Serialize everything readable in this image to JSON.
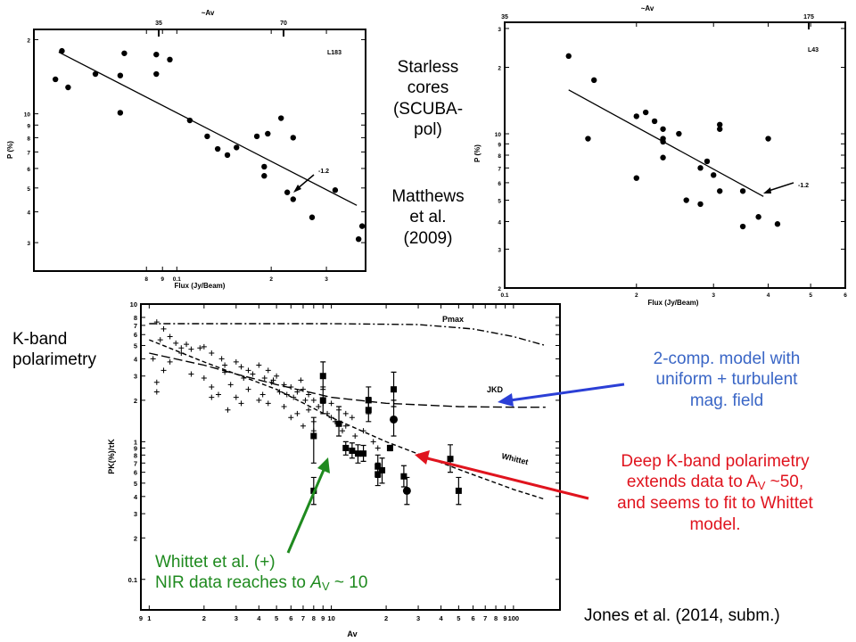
{
  "annotations": {
    "starless_lines": [
      "Starless",
      "cores",
      "(SCUBA-",
      "pol)"
    ],
    "matthews_lines": [
      "Matthews",
      "et al.",
      "(2009)"
    ],
    "kband_lines": [
      "K-band",
      "polarimetry"
    ],
    "model_lines": [
      "2-comp. model with",
      "uniform + turbulent",
      "mag. field"
    ],
    "deep_line1": "Deep K-band polarimetry",
    "deep_line2_a": "extends data to A",
    "deep_line2_sub": "V",
    "deep_line2_b": " ~50,",
    "deep_line3": "and seems to fit to Whittet",
    "deep_line4": "model.",
    "whittet_line1": "Whittet et al. (+)",
    "whittet_line2_a": "NIR data reaches to ",
    "whittet_line2_av": "A",
    "whittet_line2_sub": "V",
    "whittet_line2_b": " ~ 10",
    "jones": "Jones et al. (2014, subm.)"
  },
  "colors": {
    "blue_arrow": "#2b3fd6",
    "red_arrow": "#e0141e",
    "green_arrow": "#1f8a1f"
  },
  "chart_data": [
    {
      "type": "scatter",
      "name": "L183",
      "label": "L183",
      "xlabel": "Flux (Jy/Beam)",
      "ylabel": "P (%)",
      "top_axis_label": "~Av",
      "top_ticks": [
        "35",
        "70"
      ],
      "xscale": "log",
      "yscale": "log",
      "xlim": [
        0.035,
        0.4
      ],
      "ylim": [
        2.3,
        22
      ],
      "x_ticks": [
        {
          "v": 0.08,
          "t": "8"
        },
        {
          "v": 0.09,
          "t": "9"
        },
        {
          "v": 0.1,
          "t": "0.1"
        },
        {
          "v": 0.2,
          "t": "2"
        },
        {
          "v": 0.3,
          "t": "3"
        }
      ],
      "y_ticks": [
        {
          "v": 3,
          "t": "3"
        },
        {
          "v": 4,
          "t": "4"
        },
        {
          "v": 5,
          "t": "5"
        },
        {
          "v": 6,
          "t": "6"
        },
        {
          "v": 7,
          "t": "7"
        },
        {
          "v": 8,
          "t": "8"
        },
        {
          "v": 9,
          "t": "9"
        },
        {
          "v": 10,
          "t": "10"
        },
        {
          "v": 20,
          "t": "2"
        }
      ],
      "points": [
        [
          0.043,
          18
        ],
        [
          0.041,
          13.8
        ],
        [
          0.045,
          12.8
        ],
        [
          0.055,
          14.5
        ],
        [
          0.066,
          14.3
        ],
        [
          0.068,
          17.6
        ],
        [
          0.066,
          10.1
        ],
        [
          0.086,
          17.4
        ],
        [
          0.086,
          14.5
        ],
        [
          0.095,
          16.6
        ],
        [
          0.11,
          9.4
        ],
        [
          0.125,
          8.1
        ],
        [
          0.135,
          7.2
        ],
        [
          0.145,
          6.8
        ],
        [
          0.155,
          7.3
        ],
        [
          0.18,
          8.1
        ],
        [
          0.195,
          8.3
        ],
        [
          0.19,
          6.1
        ],
        [
          0.19,
          5.6
        ],
        [
          0.215,
          9.6
        ],
        [
          0.235,
          8.0
        ],
        [
          0.235,
          4.5
        ],
        [
          0.225,
          4.8
        ],
        [
          0.27,
          3.8
        ],
        [
          0.32,
          4.9
        ],
        [
          0.39,
          3.5
        ],
        [
          0.38,
          3.1
        ]
      ],
      "fit_line": [
        [
          0.042,
          17.8
        ],
        [
          0.375,
          4.25
        ]
      ],
      "fit_label": "-1.2"
    },
    {
      "type": "scatter",
      "name": "L43",
      "label": "L43",
      "xlabel": "Flux (Jy/Beam)",
      "ylabel": "P (%)",
      "top_axis_label": "~Av",
      "top_ticks": [
        "35",
        "175"
      ],
      "xscale": "log",
      "yscale": "log",
      "xlim": [
        1,
        6
      ],
      "ylim": [
        2,
        32
      ],
      "x_ticks": [
        {
          "v": 1,
          "t": "0.1"
        },
        {
          "v": 2,
          "t": "2"
        },
        {
          "v": 3,
          "t": "3"
        },
        {
          "v": 4,
          "t": "4"
        },
        {
          "v": 5,
          "t": "5"
        },
        {
          "v": 6,
          "t": "6"
        }
      ],
      "y_ticks": [
        {
          "v": 2,
          "t": "2"
        },
        {
          "v": 3,
          "t": "3"
        },
        {
          "v": 4,
          "t": "4"
        },
        {
          "v": 5,
          "t": "5"
        },
        {
          "v": 6,
          "t": "6"
        },
        {
          "v": 7,
          "t": "7"
        },
        {
          "v": 8,
          "t": "8"
        },
        {
          "v": 9,
          "t": "9"
        },
        {
          "v": 10,
          "t": "10"
        },
        {
          "v": 20,
          "t": "2"
        },
        {
          "v": 30,
          "t": "3"
        }
      ],
      "points": [
        [
          1.4,
          22.5
        ],
        [
          1.6,
          17.5
        ],
        [
          1.55,
          9.5
        ],
        [
          2.0,
          12.0
        ],
        [
          2.0,
          6.3
        ],
        [
          2.1,
          12.5
        ],
        [
          2.2,
          11.4
        ],
        [
          2.3,
          10.5
        ],
        [
          2.3,
          9.5
        ],
        [
          2.3,
          9.2
        ],
        [
          2.3,
          7.8
        ],
        [
          2.5,
          10.0
        ],
        [
          2.6,
          5.0
        ],
        [
          2.8,
          4.8
        ],
        [
          2.8,
          7.0
        ],
        [
          2.9,
          7.5
        ],
        [
          3.0,
          6.5
        ],
        [
          3.1,
          11.0
        ],
        [
          3.1,
          10.5
        ],
        [
          3.1,
          5.5
        ],
        [
          3.5,
          5.5
        ],
        [
          3.5,
          3.8
        ],
        [
          3.8,
          4.2
        ],
        [
          4.0,
          9.5
        ],
        [
          4.2,
          3.9
        ]
      ],
      "fit_line": [
        [
          1.4,
          15.8
        ],
        [
          3.9,
          5.2
        ]
      ],
      "fit_label": "-1.2"
    },
    {
      "type": "scatter",
      "name": "K-band",
      "xlabel": "Av",
      "ylabel": "PK(%)/τK",
      "xscale": "log",
      "yscale": "log",
      "xlim": [
        0.9,
        180
      ],
      "ylim": [
        0.06,
        10
      ],
      "x_ticks": [
        {
          "v": 0.9,
          "t": "9"
        },
        {
          "v": 1,
          "t": "1"
        },
        {
          "v": 2,
          "t": "2"
        },
        {
          "v": 3,
          "t": "3"
        },
        {
          "v": 4,
          "t": "4"
        },
        {
          "v": 5,
          "t": "5"
        },
        {
          "v": 6,
          "t": "6"
        },
        {
          "v": 7,
          "t": "7"
        },
        {
          "v": 8,
          "t": "8"
        },
        {
          "v": 9,
          "t": "9"
        },
        {
          "v": 10,
          "t": "10"
        },
        {
          "v": 20,
          "t": "2"
        },
        {
          "v": 30,
          "t": "3"
        },
        {
          "v": 40,
          "t": "4"
        },
        {
          "v": 50,
          "t": "5"
        },
        {
          "v": 60,
          "t": "6"
        },
        {
          "v": 70,
          "t": "7"
        },
        {
          "v": 80,
          "t": "8"
        },
        {
          "v": 90,
          "t": "9"
        },
        {
          "v": 100,
          "t": "100"
        }
      ],
      "y_ticks": [
        {
          "v": 0.1,
          "t": "0.1"
        },
        {
          "v": 0.2,
          "t": "2"
        },
        {
          "v": 0.3,
          "t": "3"
        },
        {
          "v": 0.4,
          "t": "4"
        },
        {
          "v": 0.5,
          "t": "5"
        },
        {
          "v": 0.6,
          "t": "6"
        },
        {
          "v": 0.7,
          "t": "7"
        },
        {
          "v": 0.8,
          "t": "8"
        },
        {
          "v": 0.9,
          "t": "9"
        },
        {
          "v": 1,
          "t": "1"
        },
        {
          "v": 2,
          "t": "2"
        },
        {
          "v": 3,
          "t": "3"
        },
        {
          "v": 4,
          "t": "4"
        },
        {
          "v": 5,
          "t": "5"
        },
        {
          "v": 6,
          "t": "6"
        },
        {
          "v": 7,
          "t": "7"
        },
        {
          "v": 8,
          "t": "8"
        },
        {
          "v": 10,
          "t": "10"
        }
      ],
      "series": [
        {
          "name": "Whittet et al. (+)",
          "marker": "plus",
          "points": [
            [
              1.1,
              7.4
            ],
            [
              1.2,
              6.6
            ],
            [
              1.15,
              5.5
            ],
            [
              1.3,
              5.8
            ],
            [
              1.4,
              5.2
            ],
            [
              1.5,
              4.8
            ],
            [
              1.6,
              5.1
            ],
            [
              1.7,
              4.7
            ],
            [
              1.5,
              4.4
            ],
            [
              1.9,
              4.8
            ],
            [
              2.0,
              4.9
            ],
            [
              2.2,
              4.4
            ],
            [
              2.5,
              4.0
            ],
            [
              2.6,
              3.6
            ],
            [
              3.0,
              3.8
            ],
            [
              3.2,
              3.5
            ],
            [
              3.5,
              3.3
            ],
            [
              3.7,
              3.1
            ],
            [
              4.0,
              3.6
            ],
            [
              4.3,
              2.9
            ],
            [
              4.7,
              2.7
            ],
            [
              5.0,
              3.0
            ],
            [
              5.5,
              2.6
            ],
            [
              6.0,
              2.5
            ],
            [
              6.5,
              2.3
            ],
            [
              7.0,
              2.4
            ],
            [
              7.5,
              2.2
            ],
            [
              8.0,
              2.0
            ],
            [
              9.0,
              1.9
            ],
            [
              10.0,
              1.9
            ],
            [
              11.0,
              1.7
            ],
            [
              12.0,
              1.6
            ],
            [
              13.0,
              1.5
            ],
            [
              1.1,
              2.7
            ],
            [
              1.2,
              3.3
            ],
            [
              1.3,
              3.8
            ],
            [
              2.0,
              2.9
            ],
            [
              2.2,
              2.5
            ],
            [
              2.4,
              2.2
            ],
            [
              2.8,
              2.6
            ],
            [
              3.0,
              2.1
            ],
            [
              3.5,
              2.4
            ],
            [
              4.0,
              2.0
            ],
            [
              4.5,
              1.9
            ],
            [
              5.5,
              1.8
            ],
            [
              6.0,
              1.5
            ],
            [
              6.5,
              1.6
            ],
            [
              7.0,
              1.3
            ],
            [
              8.0,
              1.4
            ],
            [
              1.7,
              3.1
            ],
            [
              2.6,
              3.2
            ],
            [
              3.3,
              2.9
            ],
            [
              4.5,
              3.3
            ],
            [
              5.2,
              2.3
            ],
            [
              6.8,
              2.8
            ],
            [
              7.5,
              1.7
            ],
            [
              9.5,
              1.6
            ],
            [
              12.0,
              1.3
            ],
            [
              2.2,
              2.1
            ],
            [
              2.7,
              1.7
            ],
            [
              3.2,
              1.9
            ],
            [
              4.2,
              2.2
            ],
            [
              4.8,
              2.8
            ],
            [
              5.7,
              2.2
            ],
            [
              6.2,
              2.1
            ],
            [
              7.2,
              2.0
            ],
            [
              8.5,
              1.8
            ],
            [
              10.0,
              1.5
            ],
            [
              10.5,
              1.4
            ],
            [
              11.5,
              1.2
            ],
            [
              13.5,
              1.1
            ],
            [
              15.0,
              1.2
            ],
            [
              17.0,
              1.0
            ],
            [
              18.0,
              0.9
            ],
            [
              8.0,
              1.2
            ],
            [
              1.05,
              4.0
            ],
            [
              1.1,
              2.3
            ]
          ],
          "error_bars": false
        },
        {
          "name": "Deep K-band",
          "marker": "square",
          "points": [
            [
              8,
              1.1,
              0.7,
              1.5
            ],
            [
              8,
              0.44,
              0.35,
              0.55
            ],
            [
              9,
              3.0,
              2.4,
              3.8
            ],
            [
              9,
              2.0,
              1.6,
              2.5
            ],
            [
              11,
              1.35,
              1.1,
              1.8
            ],
            [
              12,
              0.9,
              0.8,
              1.0
            ],
            [
              13,
              0.86,
              0.76,
              0.98
            ],
            [
              14,
              0.82,
              0.7,
              0.95
            ],
            [
              15,
              0.82,
              0.72,
              0.94
            ],
            [
              16,
              2.0,
              1.6,
              2.5
            ],
            [
              16,
              1.7,
              1.4,
              2.1
            ],
            [
              18,
              0.66,
              0.55,
              0.8
            ],
            [
              18,
              0.58,
              0.48,
              0.7
            ],
            [
              19,
              0.62,
              0.5,
              0.76
            ],
            [
              21,
              0.9,
              0.86,
              0.94
            ],
            [
              22,
              2.4,
              1.8,
              3.2
            ],
            [
              25,
              0.56,
              0.47,
              0.67
            ],
            [
              45,
              0.75,
              0.6,
              0.95
            ],
            [
              50,
              0.44,
              0.35,
              0.55
            ]
          ],
          "error_bars": true
        },
        {
          "name": "Deep K-band (circles)",
          "marker": "circle",
          "points": [
            [
              22,
              1.45,
              1.1,
              2.0
            ],
            [
              26,
              0.44,
              0.35,
              0.55
            ]
          ],
          "error_bars": true
        }
      ],
      "model_curves": [
        {
          "name": "Pmax",
          "style": "dashdot",
          "label": "Pmax",
          "points": [
            [
              1,
              7.2
            ],
            [
              3,
              7.2
            ],
            [
              10,
              7.2
            ],
            [
              30,
              7.1
            ],
            [
              60,
              6.6
            ],
            [
              100,
              5.8
            ],
            [
              150,
              5.0
            ]
          ]
        },
        {
          "name": "JKD",
          "style": "longdash",
          "label": "JKD",
          "points": [
            [
              1,
              4.4
            ],
            [
              2,
              3.6
            ],
            [
              3,
              3.1
            ],
            [
              5,
              2.6
            ],
            [
              10,
              2.1
            ],
            [
              20,
              1.9
            ],
            [
              50,
              1.8
            ],
            [
              100,
              1.78
            ],
            [
              150,
              1.78
            ]
          ]
        },
        {
          "name": "Whittet",
          "style": "shortdash",
          "label": "Whittet",
          "points": [
            [
              1,
              5.5
            ],
            [
              2,
              3.8
            ],
            [
              5,
              2.4
            ],
            [
              10,
              1.5
            ],
            [
              20,
              1.0
            ],
            [
              50,
              0.63
            ],
            [
              100,
              0.45
            ],
            [
              150,
              0.38
            ]
          ]
        }
      ]
    }
  ]
}
